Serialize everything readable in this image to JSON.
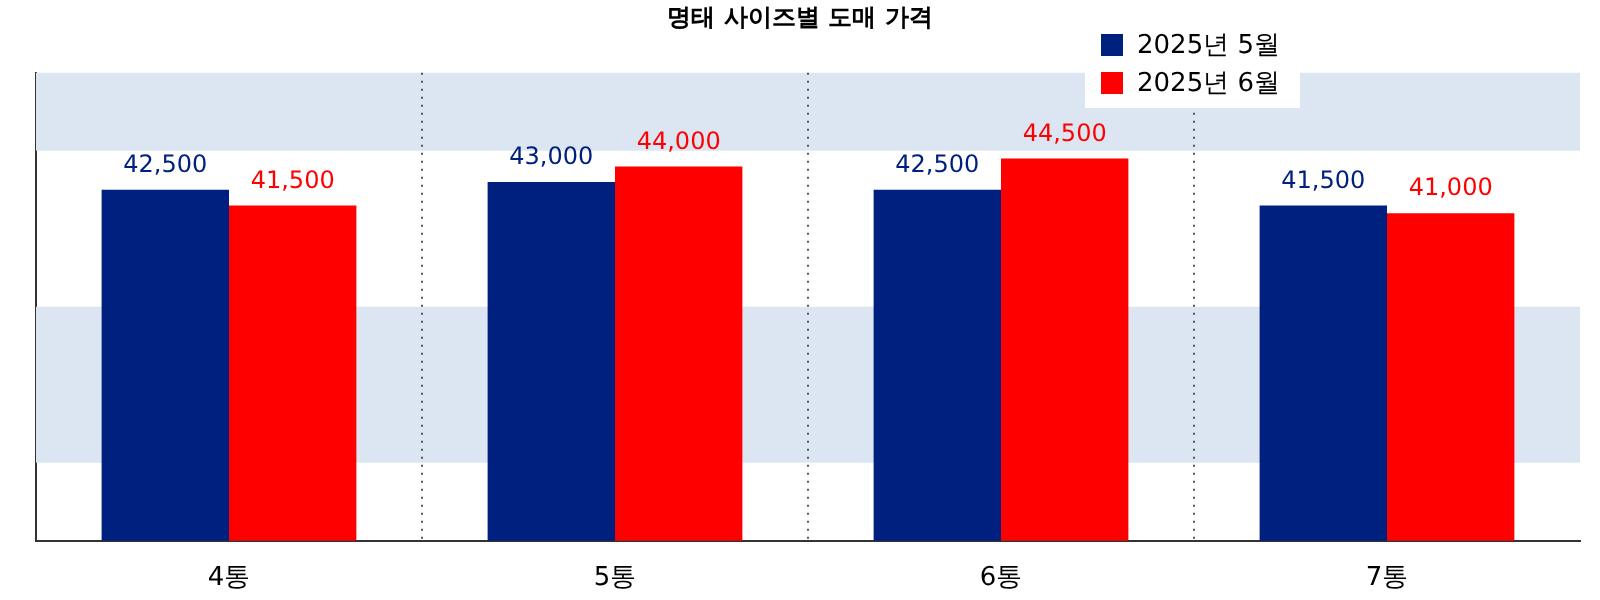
{
  "chart_data": {
    "type": "bar",
    "title": "명태 사이즈별 도매 가격",
    "categories": [
      "4통",
      "5통",
      "6통",
      "7통"
    ],
    "series": [
      {
        "name": "2025년 5월",
        "color": "#002080",
        "values": [
          42500,
          43000,
          42500,
          41500
        ],
        "value_labels": [
          "42,500",
          "43,000",
          "42,500",
          "41,500"
        ]
      },
      {
        "name": "2025년 6월",
        "color": "#ff0000",
        "values": [
          41500,
          44000,
          44500,
          41000
        ],
        "value_labels": [
          "41,500",
          "44,000",
          "44,500",
          "41,000"
        ]
      }
    ],
    "ylim": [
      20000,
      50000
    ],
    "bands": [
      {
        "axis": "y",
        "from": 45000,
        "to": 50000,
        "color": "#dce6f2"
      },
      {
        "axis": "y",
        "from": 25000,
        "to": 35000,
        "color": "#dce6f2"
      }
    ],
    "tick_labels": "x",
    "grid": "x",
    "legend": "top right"
  }
}
